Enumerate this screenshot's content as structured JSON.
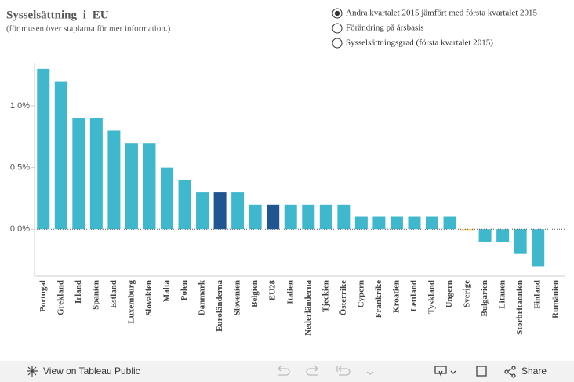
{
  "title": "Sysselsättning i EU",
  "subtitle": "(för musen över staplarna för mer information.)",
  "options": [
    "Andra kvartalet 2015 jämfört med första kvartalet 2015",
    "Förändring på årsbasis",
    "Sysselsättningsgrad (första kvartalet 2015)"
  ],
  "selected_option": 0,
  "toolbar": {
    "view": "View on Tableau Public",
    "share": "Share"
  },
  "chart_data": {
    "type": "bar",
    "categories": [
      "Portugal",
      "Grekland",
      "Irland",
      "Spanien",
      "Estland",
      "Luxemburg",
      "Slovakien",
      "Malta",
      "Polen",
      "Danmark",
      "Euroländerna",
      "Slovenien",
      "Belgien",
      "EU28",
      "Italien",
      "Nederländerna",
      "Tjeckien",
      "Österrike",
      "Cypern",
      "Frankrike",
      "Kroatien",
      "Lettland",
      "Tyskland",
      "Ungern",
      "Sverige",
      "Bulgarien",
      "Litauen",
      "Storbritannien",
      "Finland",
      "Rumänien"
    ],
    "values": [
      1.3,
      1.2,
      0.9,
      0.9,
      0.8,
      0.7,
      0.7,
      0.5,
      0.4,
      0.3,
      0.3,
      0.3,
      0.2,
      0.2,
      0.2,
      0.2,
      0.2,
      0.2,
      0.1,
      0.1,
      0.1,
      0.1,
      0.1,
      0.1,
      0.0,
      -0.1,
      -0.1,
      -0.2,
      -0.3,
      null
    ],
    "colors": [
      "#3fb8cd",
      "#3fb8cd",
      "#3fb8cd",
      "#3fb8cd",
      "#3fb8cd",
      "#3fb8cd",
      "#3fb8cd",
      "#3fb8cd",
      "#3fb8cd",
      "#3fb8cd",
      "#1f5591",
      "#3fb8cd",
      "#3fb8cd",
      "#1f5591",
      "#3fb8cd",
      "#3fb8cd",
      "#3fb8cd",
      "#3fb8cd",
      "#3fb8cd",
      "#3fb8cd",
      "#3fb8cd",
      "#3fb8cd",
      "#3fb8cd",
      "#3fb8cd",
      "#f0c040",
      "#3fb8cd",
      "#3fb8cd",
      "#3fb8cd",
      "#3fb8cd",
      "#3fb8cd"
    ],
    "ylim": [
      -0.38,
      1.35
    ],
    "yticks": [
      {
        "value": 0,
        "label": "0.0%"
      },
      {
        "value": 0.5,
        "label": "0.5%"
      },
      {
        "value": 1,
        "label": "1.0%"
      }
    ]
  }
}
